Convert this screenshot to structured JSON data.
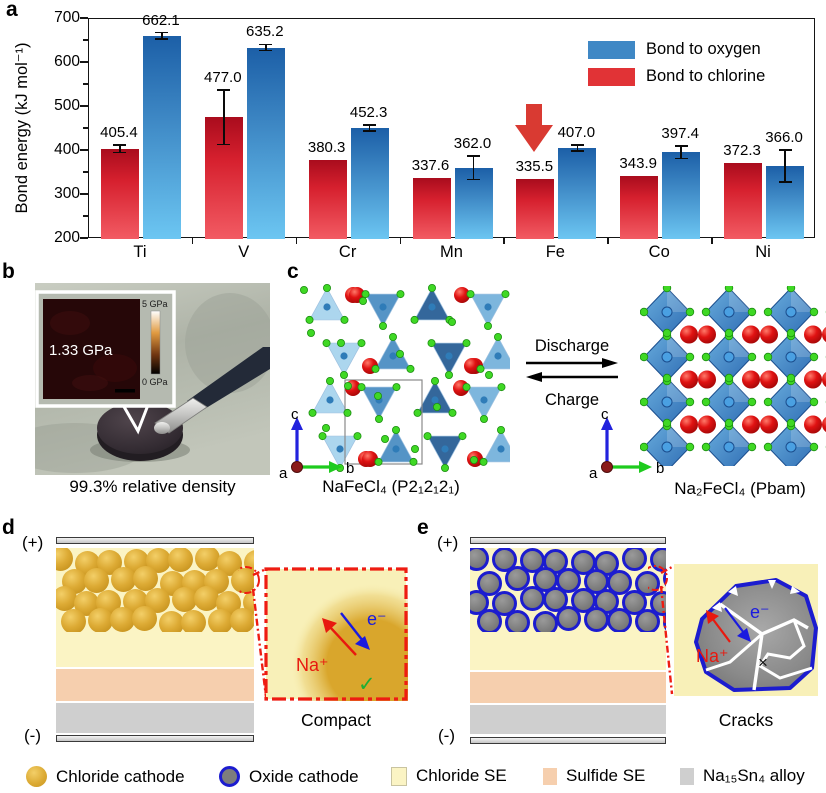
{
  "panel_letters": {
    "a": "a",
    "b": "b",
    "c": "c",
    "d": "d",
    "e": "e"
  },
  "chart_data": {
    "type": "bar",
    "title": "",
    "categories": [
      "Ti",
      "V",
      "Cr",
      "Mn",
      "Fe",
      "Co",
      "Ni"
    ],
    "series": [
      {
        "name": "Bond to chlorine",
        "color": "#e13336",
        "values": [
          405.4,
          477.0,
          380.3,
          337.6,
          335.5,
          343.9,
          372.3
        ],
        "errors": [
          9,
          62,
          0,
          0,
          0,
          0,
          0
        ]
      },
      {
        "name": "Bond to oxygen",
        "color": "#3f88c5",
        "values": [
          662.1,
          635.2,
          452.3,
          362.0,
          407.0,
          397.4,
          366.0
        ],
        "errors": [
          7,
          7,
          7,
          27,
          7,
          14,
          36
        ]
      }
    ],
    "legend_order": [
      "Bond to oxygen",
      "Bond to chlorine"
    ],
    "xlabel": "",
    "ylabel": "Bond energy (kJ mol⁻¹)",
    "ylim": [
      200,
      700
    ],
    "yticks": [
      200,
      300,
      400,
      500,
      600,
      700
    ],
    "grid": false,
    "legend_position": "upper right",
    "annotation": {
      "type": "red-down-arrow",
      "target": "Fe",
      "series": "Bond to chlorine"
    }
  },
  "panel_b": {
    "inset_value": "1.33 GPa",
    "scale_max": "5 GPa",
    "scale_min": "0 GPa",
    "caption": "99.3% relative density"
  },
  "panel_c": {
    "left_formula": "NaFeCl₄ (P2₁2₁2₁)",
    "right_formula": "Na₂FeCl₄ (Pbam)",
    "forward_label": "Discharge",
    "backward_label": "Charge",
    "axes": {
      "a": "a",
      "b": "b",
      "c": "c"
    }
  },
  "panel_d": {
    "positive": "(+)",
    "negative": "(-)",
    "ion_label": "Na⁺",
    "electron_label": "e⁻",
    "check_mark": "✓",
    "caption": "Compact"
  },
  "panel_e": {
    "positive": "(+)",
    "negative": "(-)",
    "ion_label": "Na⁺",
    "electron_label": "e⁻",
    "cross_mark": "×",
    "caption": "Cracks"
  },
  "legend": {
    "items": [
      {
        "label": "Chloride cathode",
        "swatch": "gold-circle",
        "color": "#dcab35"
      },
      {
        "label": "Oxide cathode",
        "swatch": "gray-circle-blue-ring",
        "color": "#7d7d7d",
        "ring": "#1c1ccf"
      },
      {
        "label": "Chloride SE",
        "swatch": "square",
        "color": "#fbf4c4"
      },
      {
        "label": "Sulfide SE",
        "swatch": "square",
        "color": "#f6cfae"
      },
      {
        "label": "Na₁₅Sn₄ alloy",
        "swatch": "square",
        "color": "#cfcfcf"
      }
    ]
  },
  "colors": {
    "bar_red_top": "#a90c1d",
    "bar_red_bottom": "#f25b63",
    "bar_blue_top": "#1c5fa7",
    "bar_blue_bottom": "#6cc6f2",
    "highlight_arrow": "#d93a32",
    "inset_border": "#ee1c12",
    "chloride_se": "#fbf4c4",
    "sulfide_se": "#f6cfae",
    "alloy": "#cfcfcf",
    "oxide_ring": "#1c1ccf",
    "na_red": "#e8190f",
    "electron_blue": "#1a1adf"
  }
}
